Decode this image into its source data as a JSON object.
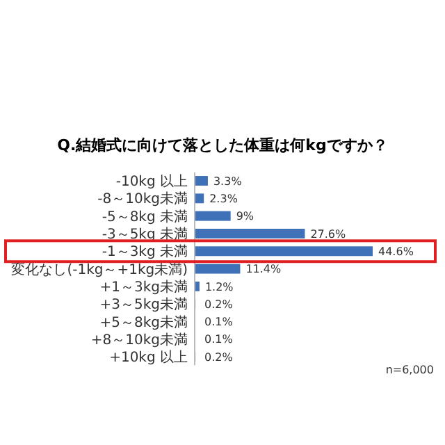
{
  "chart_data": {
    "type": "bar",
    "orientation": "horizontal",
    "title": "Q.結婚式に向けて落とした体重は何kgですか？",
    "categories": [
      "-10kg 以上",
      "-8～10kg未満",
      "-5～8kg 未満",
      "-3～5kg 未満",
      "-1～3kg 未満",
      "変化なし(-1kg～+1kg未満)",
      "+1～3kg未満",
      "+3～5kg未満",
      "+5～8kg未満",
      "+8～10kg未満",
      "+10kg 以上"
    ],
    "values": [
      3.3,
      2.3,
      9,
      27.6,
      44.6,
      11.4,
      1.2,
      0.2,
      0.1,
      0.1,
      0.2
    ],
    "value_labels": [
      "3.3%",
      "2.3%",
      "9%",
      "27.6%",
      "44.6%",
      "11.4%",
      "1.2%",
      "0.2%",
      "0.1%",
      "0.1%",
      "0.2%"
    ],
    "color": "#3f71b8",
    "annotations": [
      "n=6,000"
    ]
  }
}
